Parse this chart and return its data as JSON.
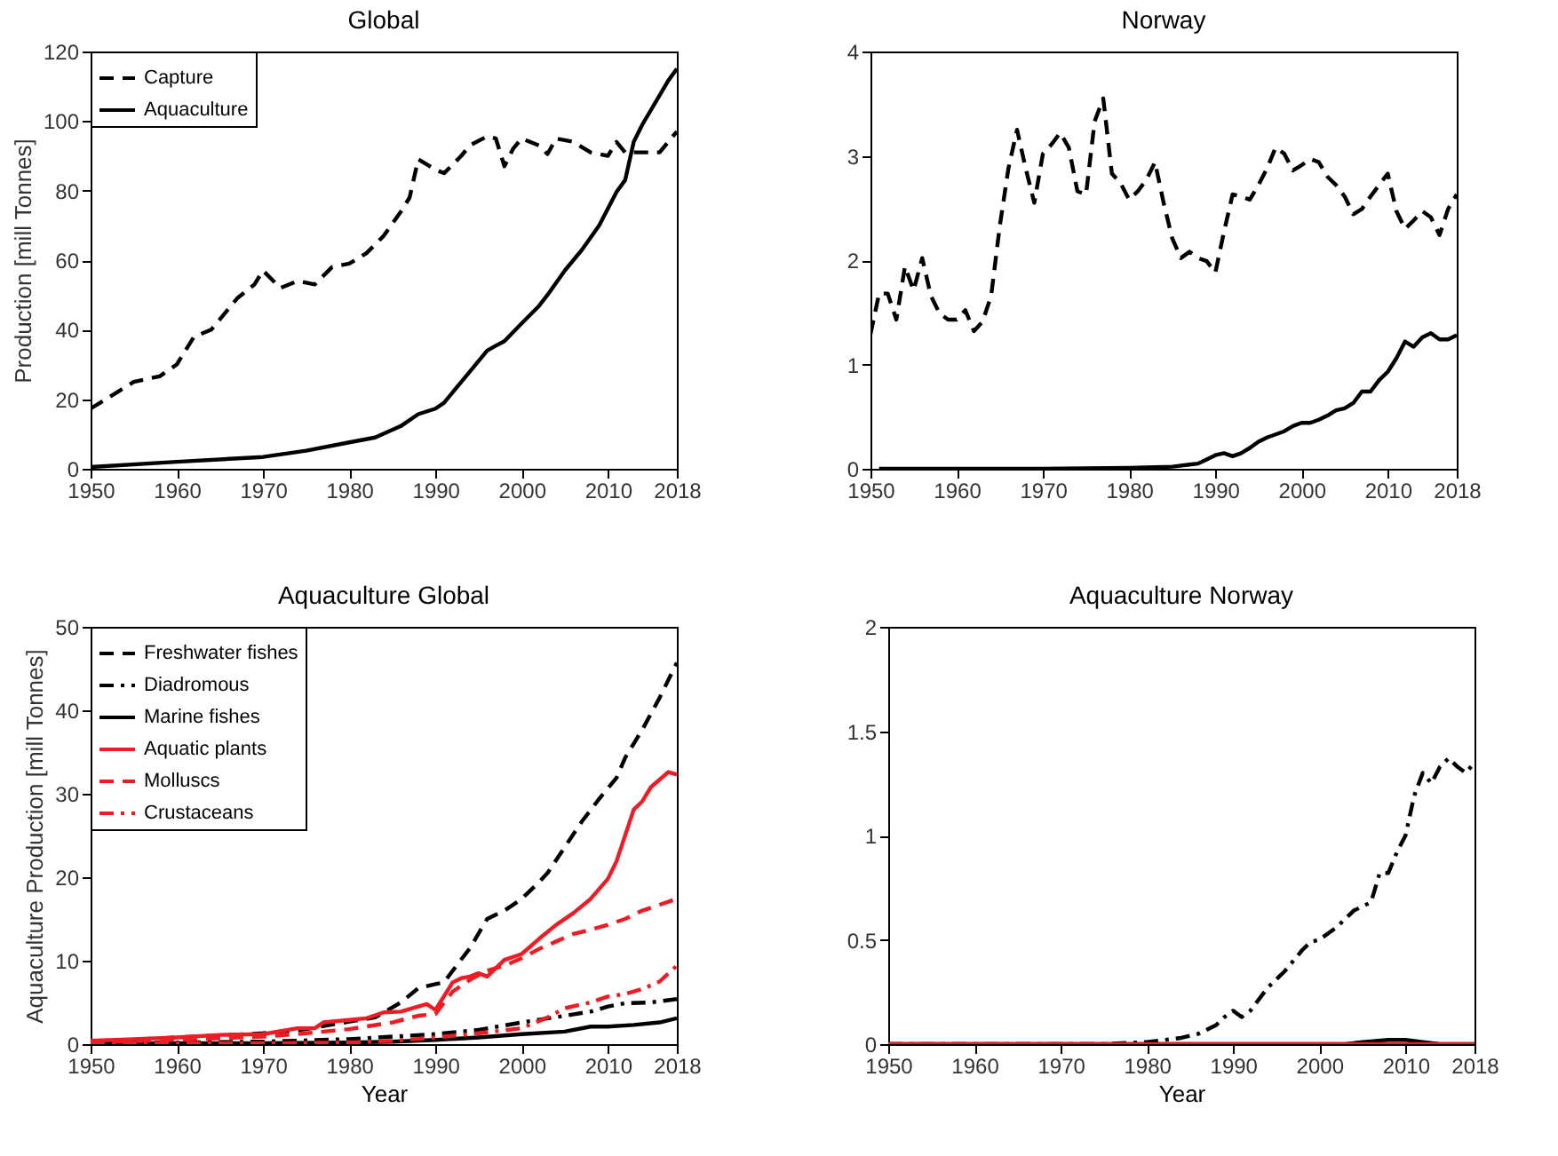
{
  "chart_data": [
    {
      "type": "line",
      "title": "Global",
      "ylabel": "Production [mill Tonnes]",
      "xlim": [
        1950,
        2018
      ],
      "xticks": [
        1950,
        1960,
        1970,
        1980,
        1990,
        2000,
        2010,
        2018
      ],
      "ylim": [
        0,
        120
      ],
      "yticks": [
        0,
        20,
        40,
        60,
        80,
        100,
        120
      ],
      "legend": "top left",
      "series": [
        {
          "name": "Capture",
          "color": "#000000",
          "line_style": "dashed",
          "x": [
            1950,
            1955,
            1958,
            1960,
            1962,
            1964,
            1965,
            1967,
            1969,
            1970,
            1972,
            1974,
            1976,
            1978,
            1980,
            1982,
            1984,
            1986,
            1987,
            1988,
            1990,
            1991,
            1993,
            1994,
            1996,
            1997,
            1998,
            1999,
            2000,
            2002,
            2003,
            2004,
            2006,
            2008,
            2010,
            2011,
            2012,
            2014,
            2016,
            2018
          ],
          "values": [
            17.3,
            25,
            26.6,
            30,
            38,
            40,
            43,
            49,
            53,
            57,
            52,
            54,
            53,
            58,
            59,
            62,
            67,
            74,
            78,
            89,
            86,
            85,
            90,
            93,
            95.6,
            95,
            87,
            92,
            95,
            93,
            90.5,
            95,
            94,
            91,
            90,
            94,
            91,
            91,
            91,
            97
          ]
        },
        {
          "name": "Aquaculture",
          "color": "#000000",
          "line_style": "solid",
          "x": [
            1950,
            1960,
            1970,
            1975,
            1980,
            1983,
            1986,
            1988,
            1990,
            1991,
            1993,
            1995,
            1996,
            1997,
            1998,
            2000,
            2002,
            2003,
            2005,
            2007,
            2009,
            2011,
            2012,
            2013,
            2014,
            2016,
            2017,
            2018
          ],
          "values": [
            0.5,
            2,
            3.4,
            5.2,
            7.6,
            9,
            12.3,
            15.7,
            17.3,
            19,
            25,
            31,
            34,
            35.4,
            36.7,
            41.8,
            46.8,
            50,
            57,
            63,
            70,
            79.6,
            83,
            94,
            99,
            107.4,
            111.6,
            115
          ]
        }
      ]
    },
    {
      "type": "line",
      "title": "Norway",
      "xlim": [
        1950,
        2018
      ],
      "xticks": [
        1950,
        1960,
        1970,
        1980,
        1990,
        2000,
        2010,
        2018
      ],
      "ylim": [
        0,
        4
      ],
      "yticks": [
        0,
        1,
        2,
        3,
        4
      ],
      "series": [
        {
          "color": "#000000",
          "line_style": "dashed",
          "x": [
            1950,
            1951,
            1952,
            1953,
            1954,
            1955,
            1956,
            1957,
            1958,
            1959,
            1960,
            1961,
            1962,
            1963,
            1964,
            1965,
            1966,
            1967,
            1968,
            1969,
            1970,
            1971,
            1972,
            1973,
            1974,
            1975,
            1976,
            1977,
            1978,
            1979,
            1980,
            1981,
            1982,
            1983,
            1984,
            1985,
            1986,
            1987,
            1988,
            1989,
            1990,
            1991,
            1992,
            1993,
            1994,
            1995,
            1996,
            1997,
            1998,
            1999,
            2000,
            2001,
            2002,
            2003,
            2004,
            2005,
            2006,
            2007,
            2008,
            2009,
            2010,
            2011,
            2012,
            2013,
            2014,
            2015,
            2016,
            2017,
            2018
          ],
          "values": [
            1.29,
            1.68,
            1.68,
            1.43,
            1.94,
            1.71,
            2.02,
            1.66,
            1.49,
            1.43,
            1.43,
            1.52,
            1.32,
            1.41,
            1.66,
            2.33,
            2.88,
            3.25,
            2.88,
            2.55,
            3.02,
            3.11,
            3.22,
            3.08,
            2.66,
            2.63,
            3.33,
            3.55,
            2.83,
            2.74,
            2.58,
            2.66,
            2.77,
            2.94,
            2.55,
            2.21,
            2.02,
            2.08,
            2.02,
            1.99,
            1.88,
            2.27,
            2.63,
            2.61,
            2.58,
            2.72,
            2.88,
            3.08,
            3.02,
            2.86,
            2.91,
            2.97,
            2.94,
            2.8,
            2.72,
            2.61,
            2.44,
            2.49,
            2.61,
            2.72,
            2.83,
            2.47,
            2.3,
            2.38,
            2.47,
            2.41,
            2.24,
            2.49,
            2.63
          ]
        },
        {
          "color": "#000000",
          "line_style": "solid",
          "x": [
            1951,
            1960,
            1970,
            1980,
            1985,
            1987,
            1988,
            1989,
            1990,
            1991,
            1992,
            1993,
            1994,
            1995,
            1996,
            1997,
            1998,
            1999,
            2000,
            2001,
            2002,
            2003,
            2004,
            2005,
            2006,
            2007,
            2008,
            2009,
            2010,
            2011,
            2012,
            2013,
            2014,
            2015,
            2016,
            2017,
            2018
          ],
          "values": [
            0,
            0,
            0,
            0.01,
            0.02,
            0.04,
            0.05,
            0.09,
            0.13,
            0.15,
            0.12,
            0.15,
            0.2,
            0.26,
            0.3,
            0.33,
            0.36,
            0.41,
            0.44,
            0.44,
            0.47,
            0.51,
            0.56,
            0.58,
            0.63,
            0.74,
            0.74,
            0.85,
            0.93,
            1.06,
            1.22,
            1.17,
            1.26,
            1.3,
            1.24,
            1.24,
            1.28
          ]
        }
      ]
    },
    {
      "type": "line",
      "title": "Aquaculture Global",
      "xlabel": "Year",
      "ylabel": "Aquaculture Production [mill Tonnes]",
      "xlim": [
        1950,
        2018
      ],
      "xticks": [
        1950,
        1960,
        1970,
        1980,
        1990,
        2000,
        2010,
        2018
      ],
      "ylim": [
        0,
        50
      ],
      "yticks": [
        0,
        10,
        20,
        30,
        40,
        50
      ],
      "legend": "top left",
      "series": [
        {
          "name": "Freshwater fishes",
          "color": "#000000",
          "line_style": "dashed",
          "x": [
            1950,
            1960,
            1970,
            1975,
            1980,
            1983,
            1986,
            1988,
            1990,
            1991,
            1992,
            1994,
            1996,
            1998,
            2000,
            2002,
            2003,
            2005,
            2007,
            2009,
            2011,
            2012,
            2014,
            2016,
            2018
          ],
          "values": [
            0.3,
            0.8,
            1.3,
            1.8,
            2.7,
            3.2,
            5,
            6.7,
            7.2,
            7.4,
            8.8,
            11.5,
            15,
            16,
            17.4,
            19.4,
            20.5,
            23.6,
            26.7,
            29.4,
            31.9,
            34.3,
            37.7,
            41.5,
            45.7
          ]
        },
        {
          "name": "Diadromous",
          "color": "#000000",
          "line_style": "dashdot",
          "x": [
            1950,
            1970,
            1980,
            1985,
            1990,
            1995,
            2000,
            2005,
            2008,
            2010,
            2012,
            2015,
            2018
          ],
          "values": [
            0.1,
            0.3,
            0.6,
            0.9,
            1.2,
            1.7,
            2.6,
            3.4,
            3.9,
            4.5,
            4.9,
            5,
            5.4
          ]
        },
        {
          "name": "Marine fishes",
          "color": "#000000",
          "line_style": "solid",
          "x": [
            1950,
            1970,
            1980,
            1985,
            1990,
            1995,
            2000,
            2005,
            2008,
            2010,
            2013,
            2016,
            2018
          ],
          "values": [
            0.1,
            0.1,
            0.2,
            0.3,
            0.5,
            0.8,
            1.2,
            1.5,
            2.1,
            2.1,
            2.3,
            2.6,
            3.1
          ]
        },
        {
          "name": "Aquatic plants",
          "color": "#ee1c24",
          "line_style": "solid",
          "x": [
            1950,
            1955,
            1960,
            1965,
            1970,
            1974,
            1976,
            1977,
            1980,
            1982,
            1984,
            1986,
            1988,
            1989,
            1990,
            1992,
            1993,
            1994,
            1995,
            1996,
            1998,
            2000,
            2002,
            2004,
            2006,
            2008,
            2010,
            2011,
            2013,
            2014,
            2015,
            2017,
            2018
          ],
          "values": [
            0.4,
            0.6,
            0.8,
            1.1,
            1.2,
            1.9,
            1.9,
            2.6,
            2.9,
            3.1,
            3.8,
            3.9,
            4.5,
            4.8,
            4.1,
            7.4,
            7.9,
            8.1,
            8.5,
            8.1,
            10.1,
            10.8,
            12.6,
            14.3,
            15.7,
            17.4,
            19.8,
            21.9,
            28.1,
            29.1,
            30.8,
            32.6,
            32.3
          ]
        },
        {
          "name": "Molluscs",
          "color": "#ee1c24",
          "line_style": "dashed",
          "x": [
            1950,
            1960,
            1970,
            1975,
            1980,
            1985,
            1988,
            1990,
            1992,
            1994,
            1996,
            1998,
            2000,
            2002,
            2004,
            2006,
            2008,
            2010,
            2012,
            2014,
            2016,
            2018
          ],
          "values": [
            0.2,
            0.5,
            0.9,
            1.3,
            1.8,
            2.6,
            3.4,
            3.6,
            6.3,
            7.7,
            8.8,
            9.4,
            10.3,
            11.4,
            12.3,
            13.2,
            13.7,
            14.3,
            15,
            16,
            16.7,
            17.4
          ]
        },
        {
          "name": "Crustaceans",
          "color": "#ee1c24",
          "line_style": "dashdot",
          "x": [
            1950,
            1970,
            1980,
            1985,
            1990,
            1995,
            2000,
            2003,
            2005,
            2008,
            2010,
            2012,
            2014,
            2016,
            2018
          ],
          "values": [
            0.1,
            0.1,
            0.2,
            0.4,
            0.8,
            1.3,
            1.9,
            3.2,
            4.3,
            5,
            5.7,
            6,
            6.6,
            7.5,
            9.4
          ]
        }
      ]
    },
    {
      "type": "line",
      "title": "Aquaculture Norway",
      "xlabel": "Year",
      "xlim": [
        1950,
        2018
      ],
      "xticks": [
        1950,
        1960,
        1970,
        1980,
        1990,
        2000,
        2010,
        2018
      ],
      "ylim": [
        0,
        2
      ],
      "yticks": [
        0,
        0.5,
        1,
        1.5,
        2
      ],
      "series": [
        {
          "color": "#000000",
          "line_style": "dashdot",
          "x": [
            1950,
            1975,
            1980,
            1984,
            1986,
            1988,
            1989,
            1990,
            1991,
            1992,
            1994,
            1996,
            1998,
            1999,
            2000,
            2002,
            2004,
            2006,
            2007,
            2008,
            2009,
            2010,
            2011,
            2012,
            2013,
            2014,
            2015,
            2016,
            2017,
            2018
          ],
          "values": [
            0,
            0,
            0.01,
            0.03,
            0.05,
            0.09,
            0.13,
            0.16,
            0.13,
            0.16,
            0.27,
            0.35,
            0.45,
            0.49,
            0.5,
            0.56,
            0.64,
            0.68,
            0.82,
            0.82,
            0.92,
            1,
            1.19,
            1.3,
            1.25,
            1.33,
            1.37,
            1.33,
            1.3,
            1.35
          ]
        },
        {
          "color": "#000000",
          "line_style": "solid",
          "x": [
            1950,
            2003,
            2005,
            2008,
            2010,
            2012,
            2014,
            2018
          ],
          "values": [
            0,
            0,
            0.01,
            0.02,
            0.02,
            0.01,
            0,
            0
          ]
        },
        {
          "color": "#ee1c24",
          "line_style": "solid",
          "x": [
            1950,
            2018
          ],
          "values": [
            0,
            0
          ]
        }
      ]
    }
  ]
}
